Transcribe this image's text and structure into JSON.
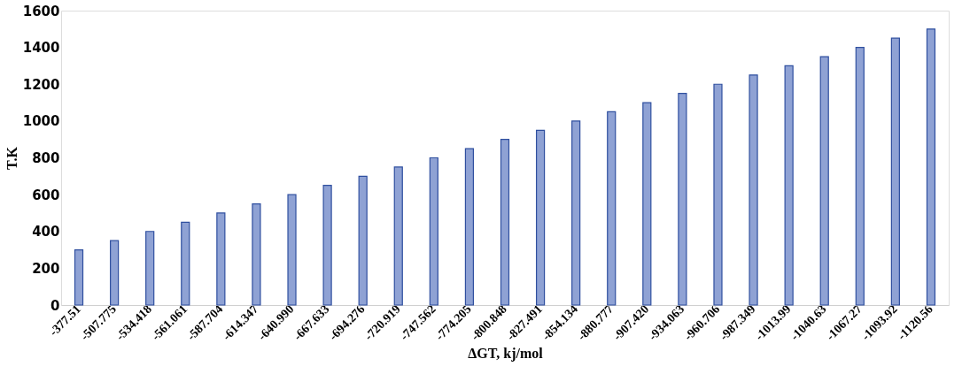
{
  "chart_data": {
    "type": "bar",
    "xlabel": "ΔGT, kj/mol",
    "ylabel": "T.K",
    "categories": [
      "-377.51",
      "-507.775",
      "-534.418",
      "-561.061",
      "-587.704",
      "-614.347",
      "-640.990",
      "-667.633",
      "-694.276",
      "-720.919",
      "-747.562",
      "-774.205",
      "-800.848",
      "-827.491",
      "-854.134",
      "-880.777",
      "-907.420",
      "-934.063",
      "-960.706",
      "-987.349",
      "-1013.99",
      "-1040.63",
      "-1067.27",
      "-1093.92",
      "-1120.56"
    ],
    "values": [
      300,
      350,
      400,
      450,
      500,
      550,
      600,
      650,
      700,
      750,
      800,
      850,
      900,
      950,
      1000,
      1050,
      1100,
      1150,
      1200,
      1250,
      1300,
      1350,
      1400,
      1450,
      1500
    ],
    "color": "#8fa2d4",
    "ylim": [
      0,
      1600
    ],
    "yticks": [
      0,
      200,
      400,
      600,
      800,
      1000,
      1200,
      1400,
      1600
    ],
    "grid": false
  }
}
